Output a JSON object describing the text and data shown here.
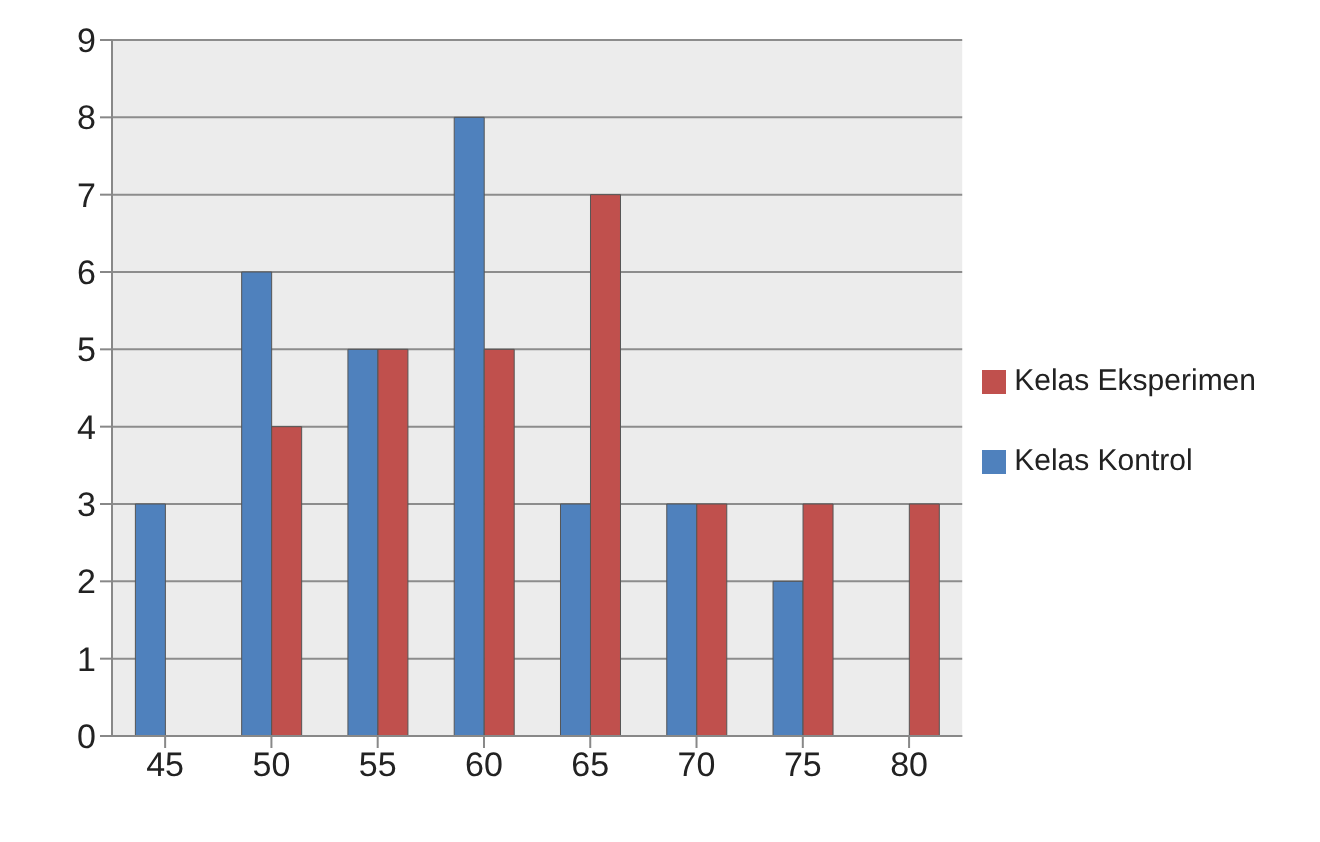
{
  "chart_data": {
    "type": "bar",
    "categories": [
      "45",
      "50",
      "55",
      "60",
      "65",
      "70",
      "75",
      "80"
    ],
    "series": [
      {
        "name": "Kelas Kontrol",
        "color": "#4f81bd",
        "values": [
          3,
          6,
          5,
          8,
          3,
          3,
          2,
          0
        ]
      },
      {
        "name": "Kelas Eksperimen",
        "color": "#c0504d",
        "values": [
          0,
          4,
          5,
          5,
          7,
          3,
          3,
          3
        ]
      }
    ],
    "ylim": [
      0,
      9
    ],
    "yticks": [
      0,
      1,
      2,
      3,
      4,
      5,
      6,
      7,
      8,
      9
    ],
    "grid": "y",
    "legend": "right"
  }
}
